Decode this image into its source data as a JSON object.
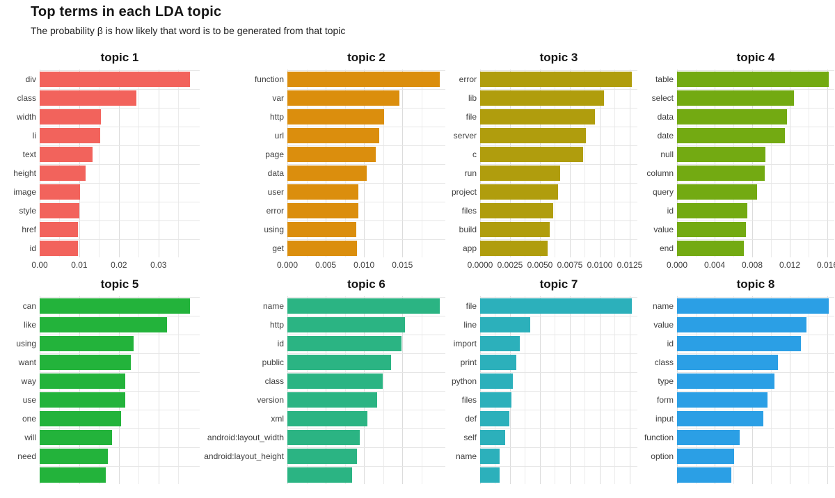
{
  "header": {
    "title": "Top terms in each LDA topic",
    "subtitle": "The probability β is how likely that word is to be generated from that topic"
  },
  "chart_data": {
    "type": "bar",
    "orientation": "horizontal",
    "facet_grid": {
      "rows": 2,
      "cols": 4,
      "note": "second row clipped at bottom of image"
    },
    "facets": [
      {
        "title": "topic 1",
        "color": "#F2635C",
        "xlim": [
          0,
          0.0404
        ],
        "axis_visible": true,
        "tick_values": [
          0,
          0.01,
          0.02,
          0.03
        ],
        "tick_labels": [
          "0.00",
          "0.01",
          "0.02",
          "0.03"
        ],
        "terms": [
          "div",
          "class",
          "width",
          "li",
          "text",
          "height",
          "image",
          "style",
          "href",
          "id"
        ],
        "values": [
          0.0379,
          0.0244,
          0.0155,
          0.0153,
          0.0134,
          0.0116,
          0.0102,
          0.01,
          0.0097,
          0.0097
        ]
      },
      {
        "title": "topic 2",
        "color": "#DB8E0D",
        "xlim": [
          0,
          0.0206
        ],
        "axis_visible": true,
        "tick_values": [
          0,
          0.005,
          0.01,
          0.015
        ],
        "tick_labels": [
          "0.000",
          "0.005",
          "0.010",
          "0.015"
        ],
        "terms": [
          "function",
          "var",
          "http",
          "url",
          "page",
          "data",
          "user",
          "error",
          "using",
          "get"
        ],
        "values": [
          0.0199,
          0.0146,
          0.0126,
          0.012,
          0.0115,
          0.0103,
          0.0093,
          0.0093,
          0.009,
          0.0091
        ]
      },
      {
        "title": "topic 3",
        "color": "#B09D0D",
        "xlim": [
          0,
          0.01314
        ],
        "axis_visible": true,
        "tick_values": [
          0,
          0.0025,
          0.005,
          0.0075,
          0.01,
          0.0125
        ],
        "tick_labels": [
          "0.0000",
          "0.0025",
          "0.0050",
          "0.0075",
          "0.0100",
          "0.0125"
        ],
        "terms": [
          "error",
          "lib",
          "file",
          "server",
          "c",
          "run",
          "project",
          "files",
          "build",
          "app"
        ],
        "values": [
          0.01268,
          0.01035,
          0.00959,
          0.00884,
          0.0086,
          0.00669,
          0.00651,
          0.00611,
          0.00581,
          0.00564
        ]
      },
      {
        "title": "topic 4",
        "color": "#73AA12",
        "xlim": [
          0,
          0.01674
        ],
        "axis_visible": true,
        "tick_values": [
          0,
          0.004,
          0.008,
          0.012,
          0.016
        ],
        "tick_labels": [
          "0.000",
          "0.004",
          "0.008",
          "0.012",
          "0.016"
        ],
        "terms": [
          "table",
          "select",
          "data",
          "date",
          "null",
          "column",
          "query",
          "id",
          "value",
          "end"
        ],
        "values": [
          0.01615,
          0.01244,
          0.0117,
          0.01148,
          0.00941,
          0.00933,
          0.00852,
          0.00748,
          0.00733,
          0.00711
        ]
      },
      {
        "title": "topic 5",
        "color": "#23B33B",
        "xlim": [
          0,
          0.0404
        ],
        "axis_visible": false,
        "tick_values": [
          0,
          0.01,
          0.02,
          0.03
        ],
        "tick_labels": [],
        "terms": [
          "can",
          "like",
          "using",
          "want",
          "way",
          "use",
          "one",
          "will",
          "need",
          ""
        ],
        "values": [
          0.0379,
          0.0322,
          0.0237,
          0.023,
          0.0216,
          0.0216,
          0.0206,
          0.0183,
          0.0172,
          0.0167
        ]
      },
      {
        "title": "topic 6",
        "color": "#2BB483",
        "xlim": [
          0,
          0.0206
        ],
        "axis_visible": false,
        "tick_values": [
          0,
          0.005,
          0.01,
          0.015
        ],
        "tick_labels": [],
        "terms": [
          "name",
          "http",
          "id",
          "public",
          "class",
          "version",
          "xml",
          "android:layout_width",
          "android:layout_height",
          ""
        ],
        "values": [
          0.0199,
          0.0153,
          0.0149,
          0.0135,
          0.0124,
          0.0117,
          0.0104,
          0.0094,
          0.0091,
          0.0084
        ]
      },
      {
        "title": "topic 7",
        "color": "#2CB0BB",
        "xlim": [
          0,
          0.01314
        ],
        "axis_visible": false,
        "tick_values": [
          0,
          0.0025,
          0.005,
          0.0075,
          0.01,
          0.0125
        ],
        "tick_labels": [],
        "terms": [
          "file",
          "line",
          "import",
          "print",
          "python",
          "files",
          "def",
          "self",
          "name",
          ""
        ],
        "values": [
          0.01268,
          0.00419,
          0.00331,
          0.00302,
          0.00273,
          0.00262,
          0.00244,
          0.00209,
          0.00163,
          0.00163
        ]
      },
      {
        "title": "topic 8",
        "color": "#2B9FE5",
        "xlim": [
          0,
          0.01674
        ],
        "axis_visible": false,
        "tick_values": [
          0,
          0.004,
          0.008,
          0.012,
          0.016
        ],
        "tick_labels": [],
        "terms": [
          "name",
          "value",
          "id",
          "class",
          "type",
          "form",
          "input",
          "function",
          "option",
          ""
        ],
        "values": [
          0.01615,
          0.01378,
          0.01319,
          0.01074,
          0.01037,
          0.00963,
          0.00918,
          0.00667,
          0.00607,
          0.00578
        ]
      }
    ]
  }
}
